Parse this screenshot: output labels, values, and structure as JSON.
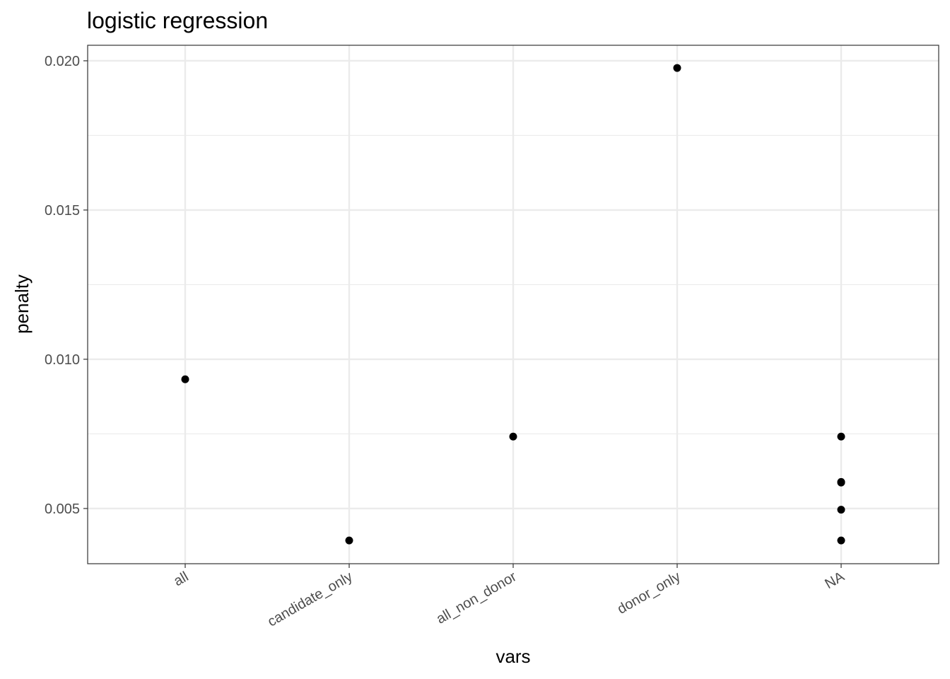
{
  "chart_data": {
    "type": "scatter",
    "title": "logistic regression",
    "xlabel": "vars",
    "ylabel": "penalty",
    "categories": [
      "all",
      "candidate_only",
      "all_non_donor",
      "donor_only",
      "NA"
    ],
    "y_ticks": [
      "0.005",
      "0.010",
      "0.015",
      "0.020"
    ],
    "y_tick_values": [
      0.005,
      0.01,
      0.015,
      0.02
    ],
    "ylim": [
      0.00315,
      0.02052
    ],
    "grid": true,
    "points": [
      {
        "x": "all",
        "y": 0.00933
      },
      {
        "x": "candidate_only",
        "y": 0.00393
      },
      {
        "x": "all_non_donor",
        "y": 0.00741
      },
      {
        "x": "donor_only",
        "y": 0.01976
      },
      {
        "x": "NA",
        "y": 0.00741
      },
      {
        "x": "NA",
        "y": 0.00589
      },
      {
        "x": "NA",
        "y": 0.00587
      },
      {
        "x": "NA",
        "y": 0.00496
      },
      {
        "x": "NA",
        "y": 0.00393
      }
    ],
    "colors": {
      "point": "#000000",
      "grid": "#ebebeb",
      "panel_border": "#333333"
    }
  }
}
